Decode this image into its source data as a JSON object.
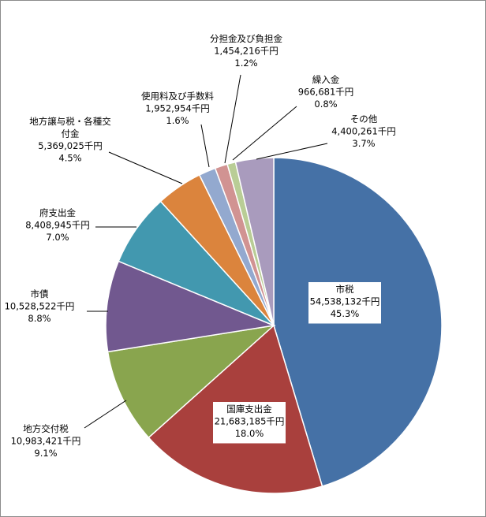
{
  "chart_data": {
    "type": "pie",
    "unit": "千円",
    "start_angle_deg": 0,
    "direction": "clockwise",
    "slices": [
      {
        "label": "市税",
        "value": 54538132,
        "value_text": "54,538,132千円",
        "percent_text": "45.3%",
        "color": "#4571a6"
      },
      {
        "label": "国庫支出金",
        "value": 21683185,
        "value_text": "21,683,185千円",
        "percent_text": "18.0%",
        "color": "#a9403d"
      },
      {
        "label": "地方交付税",
        "value": 10983421,
        "value_text": "10,983,421千円",
        "percent_text": "9.1%",
        "color": "#89a54e"
      },
      {
        "label": "市債",
        "value": 10528522,
        "value_text": "10,528,522千円",
        "percent_text": "8.8%",
        "color": "#71588f"
      },
      {
        "label": "府支出金",
        "value": 8408945,
        "value_text": "8,408,945千円",
        "percent_text": "7.0%",
        "color": "#4298af"
      },
      {
        "label": "地方譲与税・各種交付金",
        "label_lines": [
          "地方譲与税・各種交",
          "付金"
        ],
        "value": 5369025,
        "value_text": "5,369,025千円",
        "percent_text": "4.5%",
        "color": "#db843d"
      },
      {
        "label": "使用料及び手数料",
        "value": 1952954,
        "value_text": "1,952,954千円",
        "percent_text": "1.6%",
        "color": "#93a9cf"
      },
      {
        "label": "分担金及び負担金",
        "value": 1454216,
        "value_text": "1,454,216千円",
        "percent_text": "1.2%",
        "color": "#d19392"
      },
      {
        "label": "繰入金",
        "value": 966681,
        "value_text": "966,681千円",
        "percent_text": "0.8%",
        "color": "#b9cd96"
      },
      {
        "label": "その他",
        "value": 4400261,
        "value_text": "4,400,261千円",
        "percent_text": "3.7%",
        "color": "#a99bbd"
      }
    ]
  }
}
